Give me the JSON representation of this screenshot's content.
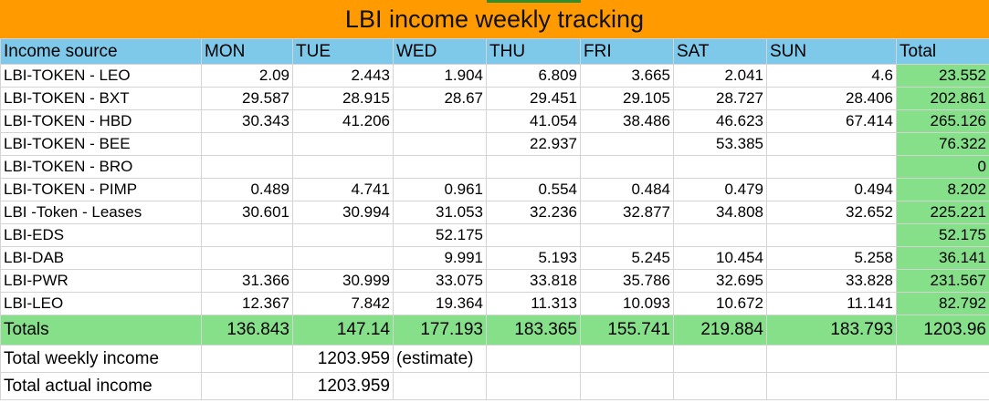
{
  "title": "LBI income weekly tracking",
  "header": [
    "Income source",
    "MON",
    "TUE",
    "WED",
    "THU",
    "FRI",
    "SAT",
    "SUN",
    "Total"
  ],
  "rows": [
    {
      "source": "LBI-TOKEN - LEO",
      "values": [
        "2.09",
        "2.443",
        "1.904",
        "6.809",
        "3.665",
        "2.041",
        "4.6"
      ],
      "total": "23.552"
    },
    {
      "source": "LBI-TOKEN - BXT",
      "values": [
        "29.587",
        "28.915",
        "28.67",
        "29.451",
        "29.105",
        "28.727",
        "28.406"
      ],
      "total": "202.861"
    },
    {
      "source": "LBI-TOKEN - HBD",
      "values": [
        "30.343",
        "41.206",
        "",
        "41.054",
        "38.486",
        "46.623",
        "67.414"
      ],
      "total": "265.126"
    },
    {
      "source": "LBI-TOKEN - BEE",
      "values": [
        "",
        "",
        "",
        "22.937",
        "",
        "53.385",
        ""
      ],
      "total": "76.322"
    },
    {
      "source": "LBI-TOKEN - BRO",
      "values": [
        "",
        "",
        "",
        "",
        "",
        "",
        ""
      ],
      "total": "0"
    },
    {
      "source": "LBI-TOKEN - PIMP",
      "values": [
        "0.489",
        "4.741",
        "0.961",
        "0.554",
        "0.484",
        "0.479",
        "0.494"
      ],
      "total": "8.202"
    },
    {
      "source": "LBI -Token - Leases",
      "values": [
        "30.601",
        "30.994",
        "31.053",
        "32.236",
        "32.877",
        "34.808",
        "32.652"
      ],
      "total": "225.221"
    },
    {
      "source": "LBI-EDS",
      "values": [
        "",
        "",
        "52.175",
        "",
        "",
        "",
        ""
      ],
      "total": "52.175"
    },
    {
      "source": "LBI-DAB",
      "values": [
        "",
        "",
        "9.991",
        "5.193",
        "5.245",
        "10.454",
        "5.258"
      ],
      "total": "36.141"
    },
    {
      "source": "LBI-PWR",
      "values": [
        "31.366",
        "30.999",
        "33.075",
        "33.818",
        "35.786",
        "32.695",
        "33.828"
      ],
      "total": "231.567"
    },
    {
      "source": "LBI-LEO",
      "values": [
        "12.367",
        "7.842",
        "19.364",
        "11.313",
        "10.093",
        "10.672",
        "11.141"
      ],
      "total": "82.792"
    }
  ],
  "totals": {
    "label": "Totals",
    "values": [
      "136.843",
      "147.14",
      "177.193",
      "183.365",
      "155.741",
      "219.884",
      "183.793"
    ],
    "total": "1203.96"
  },
  "summary": {
    "weekly_label": "Total weekly income",
    "weekly_value": "1203.959",
    "weekly_note": "(estimate)",
    "actual_label": "Total actual income",
    "actual_value": "1203.959"
  },
  "colors": {
    "title_bg": "#ff9b00",
    "header_bg": "#7ec8ea",
    "total_bg": "#86e08a"
  }
}
